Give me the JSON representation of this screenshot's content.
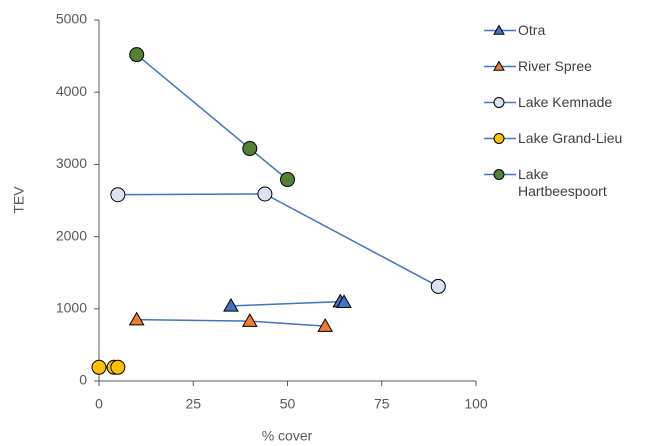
{
  "chart_data": {
    "type": "line",
    "xlabel": "% cover",
    "ylabel": "TEV",
    "xlim": [
      0,
      100
    ],
    "xticks": [
      0,
      25,
      50,
      75,
      100
    ],
    "ylim": [
      0,
      5000
    ],
    "yticks": [
      0,
      1000,
      2000,
      3000,
      4000,
      5000
    ],
    "line_color": "#4472c4",
    "series": [
      {
        "name": "Otra",
        "color": "#4472c4",
        "marker": "triangle",
        "x": [
          35,
          64,
          65
        ],
        "values": [
          1040,
          1100,
          1090
        ]
      },
      {
        "name": "River Spree",
        "color": "#ed7d31",
        "marker": "triangle",
        "x": [
          10,
          40,
          60
        ],
        "values": [
          850,
          830,
          760
        ]
      },
      {
        "name": "Lake Kemnade",
        "color": "#dae3f3",
        "marker": "circle",
        "x": [
          5,
          44,
          90
        ],
        "values": [
          2580,
          2590,
          1310
        ]
      },
      {
        "name": "Lake Grand-Lieu",
        "color": "#ffc000",
        "marker": "circle",
        "x": [
          0,
          4,
          5
        ],
        "values": [
          190,
          190,
          190
        ]
      },
      {
        "name": "Lake Hartbeespoort",
        "color": "#548235",
        "marker": "circle",
        "x": [
          10,
          40,
          50
        ],
        "values": [
          4520,
          3220,
          2790
        ]
      }
    ]
  }
}
